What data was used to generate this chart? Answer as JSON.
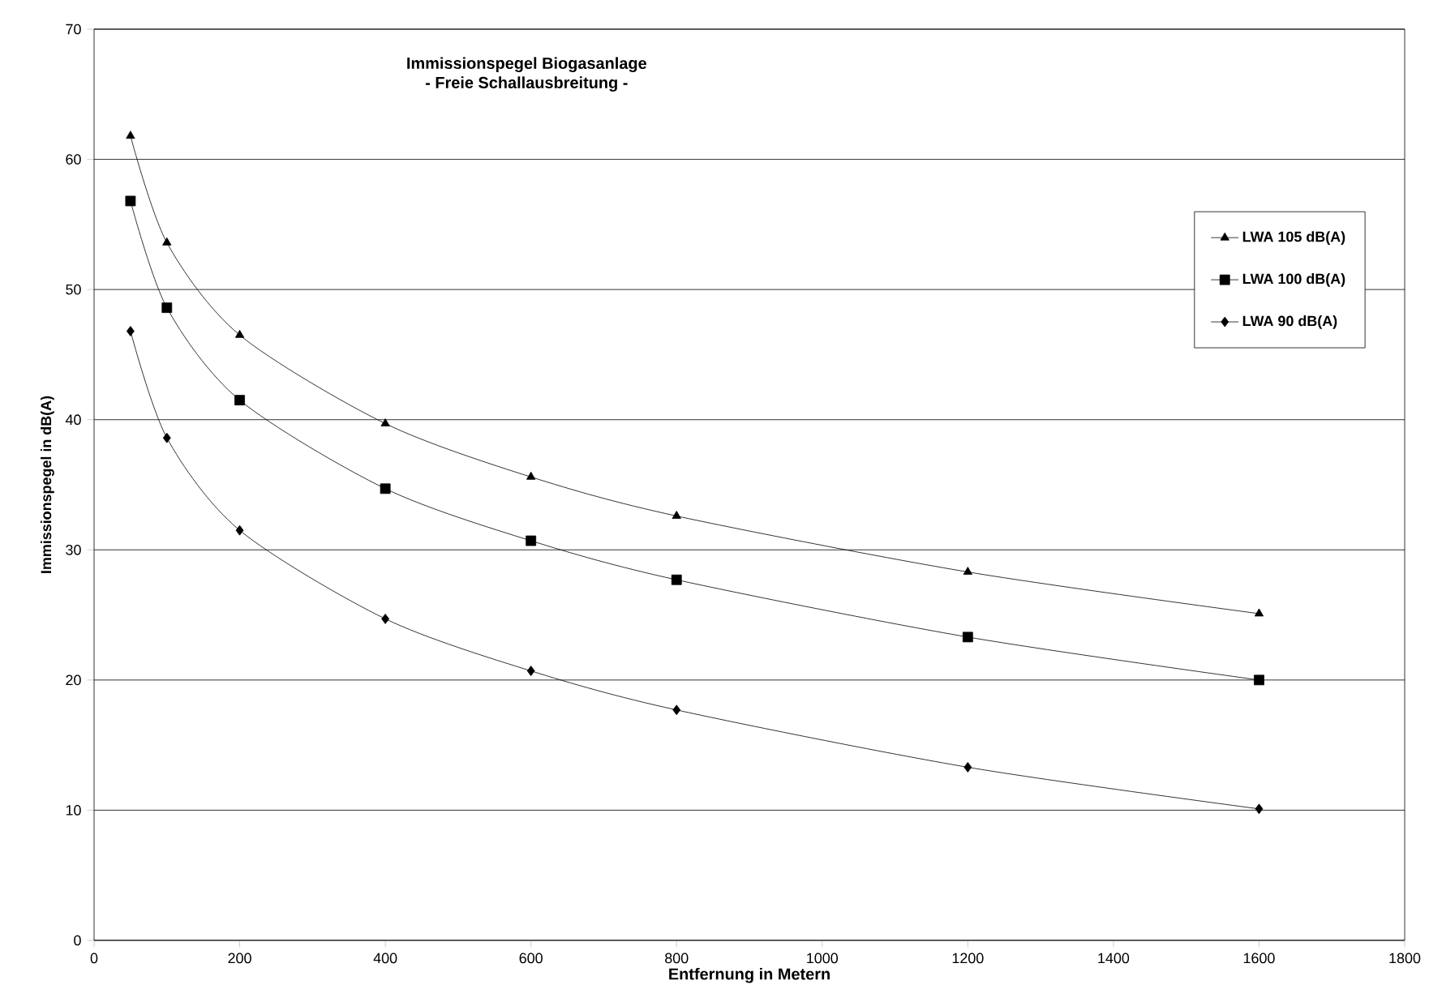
{
  "chart_data": {
    "type": "line",
    "title": "Immissionspegel Biogasanlage",
    "subtitle": "- Freie Schallausbreitung -",
    "xlabel": "Entfernung in Metern",
    "ylabel": "Immissionspegel in dB(A)",
    "x": [
      50,
      100,
      200,
      400,
      600,
      800,
      1200,
      1600
    ],
    "series": [
      {
        "name": "LWA 105 dB(A)",
        "color": "#000000",
        "marker": "triangle",
        "values": [
          61.8,
          53.6,
          46.5,
          39.7,
          35.6,
          32.6,
          28.3,
          25.1
        ]
      },
      {
        "name": "LWA 100 dB(A)",
        "color": "#000000",
        "marker": "square",
        "values": [
          56.8,
          48.6,
          41.5,
          34.7,
          30.7,
          27.7,
          23.3,
          20.0
        ]
      },
      {
        "name": "LWA 90 dB(A)",
        "color": "#000000",
        "marker": "diamond",
        "values": [
          46.8,
          38.6,
          31.5,
          24.7,
          20.7,
          17.7,
          13.3,
          10.1
        ]
      }
    ],
    "xlim": [
      0,
      1800
    ],
    "xticks": [
      0,
      200,
      400,
      600,
      800,
      1000,
      1200,
      1400,
      1600,
      1800
    ],
    "ylim": [
      0,
      70
    ],
    "yticks": [
      0,
      10,
      20,
      30,
      40,
      50,
      60,
      70
    ],
    "grid": "y",
    "legend": "right",
    "line_style": "solid"
  }
}
